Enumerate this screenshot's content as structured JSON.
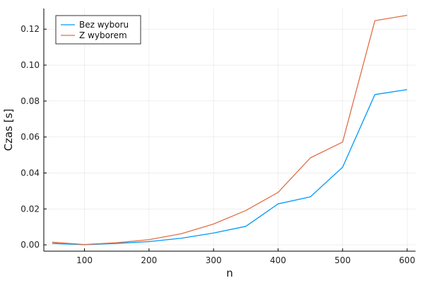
{
  "chart_data": {
    "type": "line",
    "title": "",
    "xlabel": "n",
    "ylabel": "Czas [s]",
    "x": [
      50,
      100,
      150,
      200,
      250,
      300,
      350,
      400,
      450,
      500,
      550,
      600
    ],
    "xlim": [
      37,
      613
    ],
    "ylim": [
      -0.0035,
      0.1315
    ],
    "xticks": [
      100,
      200,
      300,
      400,
      500,
      600
    ],
    "xtick_labels": [
      "100",
      "200",
      "300",
      "400",
      "500",
      "600"
    ],
    "yticks": [
      0.0,
      0.02,
      0.04,
      0.06,
      0.08,
      0.1,
      0.12
    ],
    "ytick_labels": [
      "0.00",
      "0.02",
      "0.04",
      "0.06",
      "0.08",
      "0.10",
      "0.12"
    ],
    "grid": true,
    "legend_position": "top-left",
    "series": [
      {
        "name": "Bez wyboru",
        "color": "#009AFA",
        "values": [
          0.0008,
          0.0001,
          0.0008,
          0.0018,
          0.0037,
          0.0066,
          0.0103,
          0.0228,
          0.0267,
          0.0432,
          0.0836,
          0.0864
        ]
      },
      {
        "name": "Z wyborem",
        "color": "#E26F46",
        "values": [
          0.0015,
          0.0002,
          0.0012,
          0.0029,
          0.0062,
          0.0116,
          0.0191,
          0.0292,
          0.0484,
          0.0572,
          0.1247,
          0.1277
        ]
      }
    ]
  }
}
